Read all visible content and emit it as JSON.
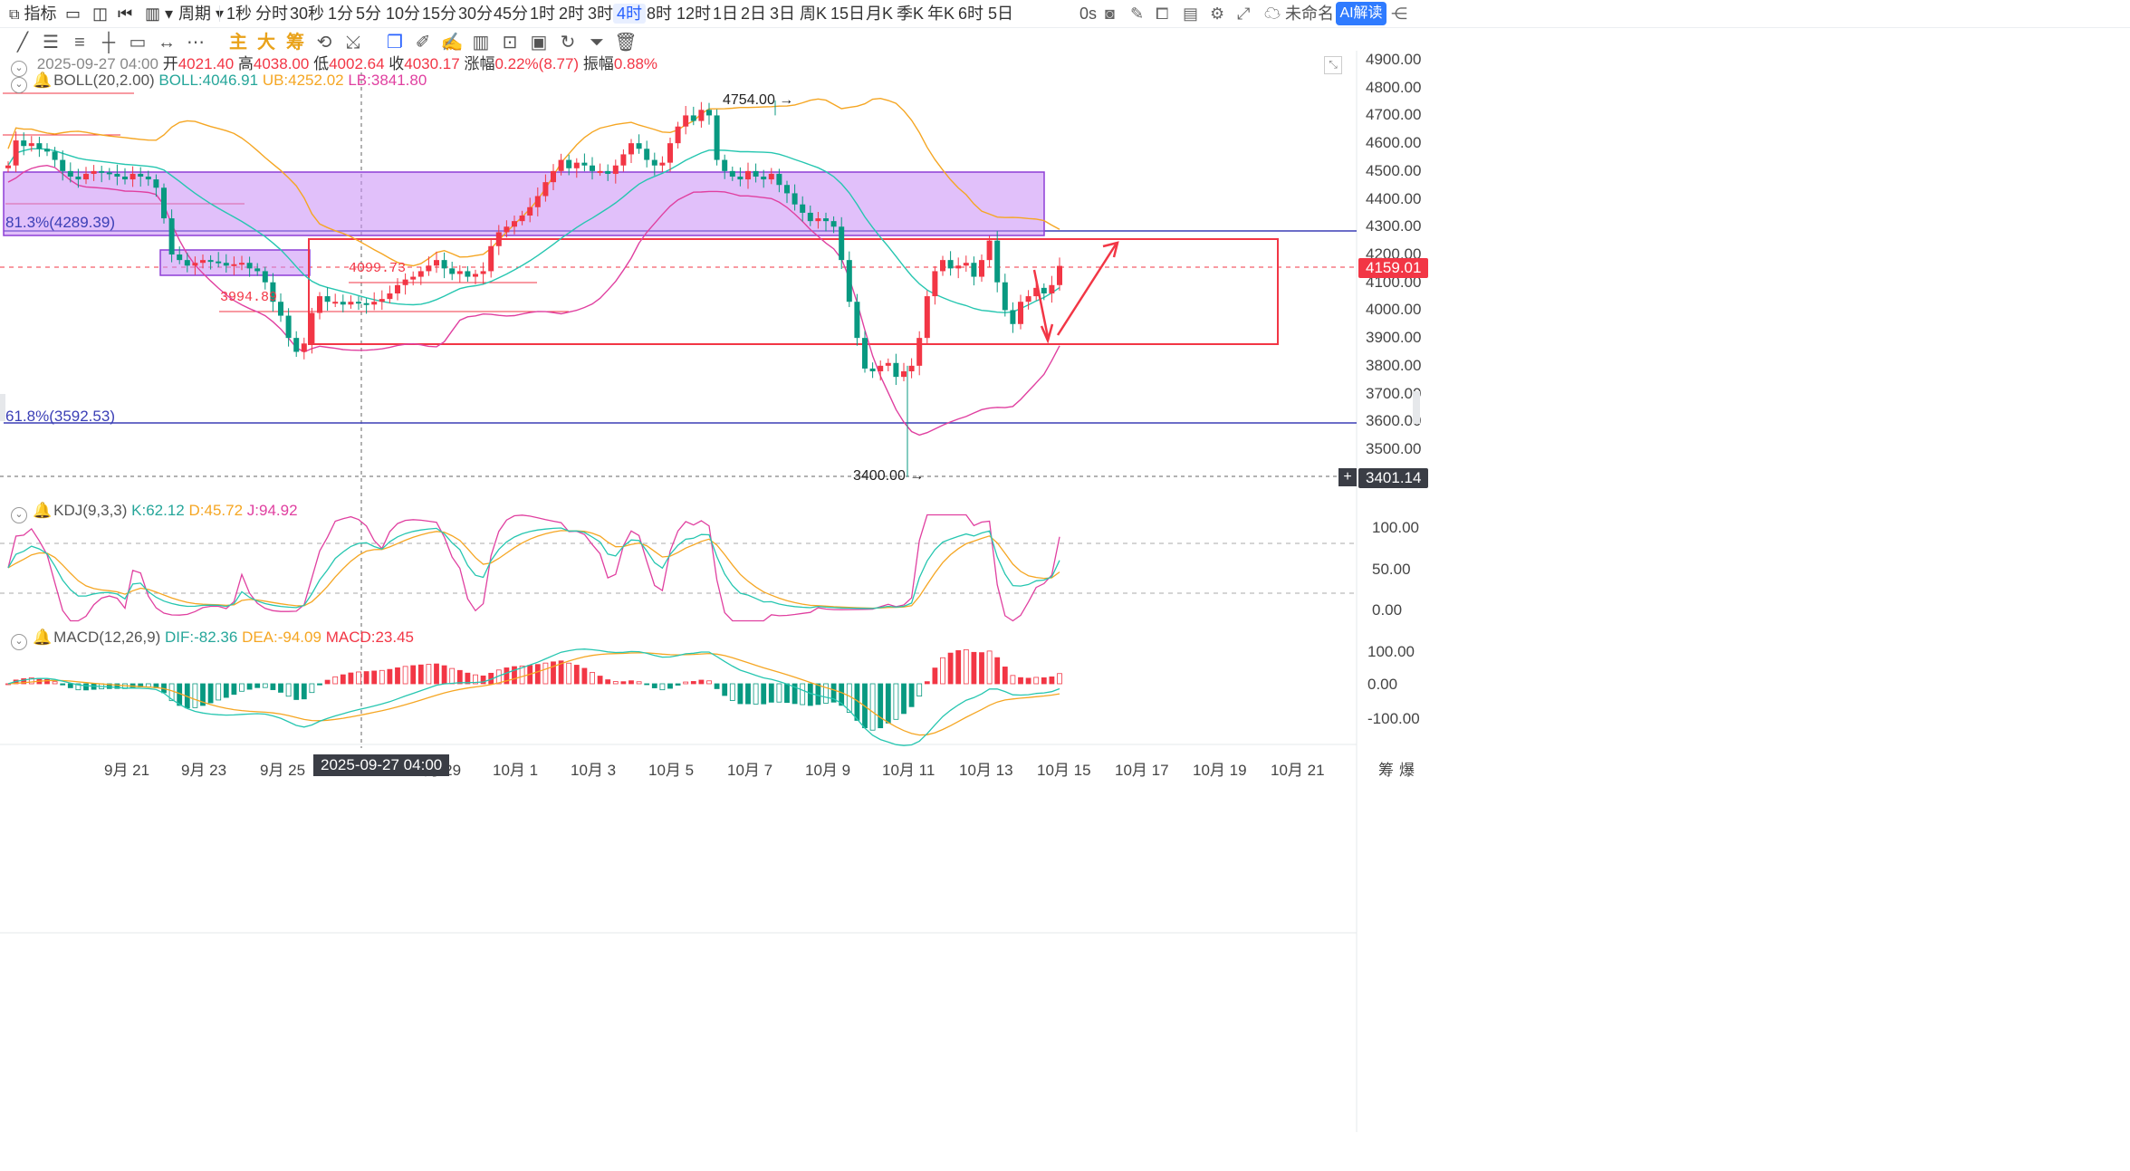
{
  "toolbar": {
    "indicators_label": "指标",
    "period_label": "周期",
    "intervals": [
      "1秒",
      "分时",
      "30秒",
      "1分",
      "5分",
      "10分",
      "15分",
      "30分",
      "45分",
      "1时",
      "2时",
      "3时",
      "4时",
      "8时",
      "12时",
      "1日",
      "2日",
      "3日",
      "周K",
      "15日",
      "月K",
      "季K",
      "年K",
      "6时",
      "5日"
    ],
    "active_interval": "4时",
    "countdown": "0s",
    "layout_name": "未命名",
    "ai_label": "AI解读"
  },
  "draw_tools": {
    "main_label": "主",
    "big_label": "大",
    "chip_label": "筹"
  },
  "ohlc_legend": {
    "datetime": "2025-09-27 04:00",
    "open_label": "开",
    "open": "4021.40",
    "high_label": "高",
    "high": "4038.00",
    "low_label": "低",
    "low": "4002.64",
    "close_label": "收",
    "close": "4030.17",
    "change_label": "涨幅",
    "change": "0.22%(8.77)",
    "amplitude_label": "振幅",
    "amplitude": "0.88%"
  },
  "boll_legend": {
    "name": "BOLL(20,2.00)",
    "boll": "BOLL:4046.91",
    "ub": "UB:4252.02",
    "lb": "LB:3841.80"
  },
  "kdj_legend": {
    "name": "KDJ(9,3,3)",
    "k": "K:62.12",
    "d": "D:45.72",
    "j": "J:94.92"
  },
  "macd_legend": {
    "name": "MACD(12,26,9)",
    "dif": "DIF:-82.36",
    "dea": "DEA:-94.09",
    "macd": "MACD:23.45"
  },
  "annotations": {
    "fib_813": "81.3%(4289.39)",
    "fib_618": "61.8%(3592.53)",
    "level_4099": "4099.73",
    "level_3994": "3994.89",
    "high_marker": "4754.00",
    "low_marker": "3400.00"
  },
  "price_axis": {
    "labels": [
      "4900.00",
      "4800.00",
      "4700.00",
      "4600.00",
      "4500.00",
      "4400.00",
      "4300.00",
      "4200.00",
      "4100.00",
      "4000.00",
      "3900.00",
      "3800.00",
      "3700.00",
      "3600.00",
      "3500.00"
    ],
    "current_price": "4159.01",
    "crosshair_price": "3401.14"
  },
  "kdj_axis": [
    "100.00",
    "50.00",
    "0.00"
  ],
  "macd_axis": [
    "100.00",
    "0.00",
    "-100.00"
  ],
  "time_axis": {
    "labels": [
      "9月 21",
      "9月 23",
      "9月 25",
      "9月 29",
      "10月 1",
      "10月 3",
      "10月 5",
      "10月 7",
      "10月 9",
      "10月 11",
      "10月 13",
      "10月 15",
      "10月 17",
      "10月 19",
      "10月 21"
    ],
    "crosshair_time": "2025-09-27 04:00",
    "corner_labels": [
      "筹",
      "爆"
    ]
  },
  "colors": {
    "up": "#f23645",
    "down": "#089981",
    "boll_mid": "#26c6b0",
    "boll_ub": "#f5a623",
    "boll_lb": "#e040a0",
    "zone": "#c98cf5",
    "accent": "#2962ff"
  },
  "chart_data": {
    "type": "candlestick",
    "interval": "4h",
    "price_range": [
      3400,
      4900
    ],
    "key_levels": {
      "fib_81_3": 4289.39,
      "fib_61_8": 3592.53,
      "support": 3994.89,
      "resistance": 4099.73,
      "high": 4754.0,
      "low": 3400.0,
      "last": 4159.01
    },
    "bollinger": {
      "period": 20,
      "mult": 2.0,
      "mid": 4046.91,
      "upper": 4252.02,
      "lower": 3841.8
    },
    "kdj": {
      "k": 62.12,
      "d": 45.72,
      "j": 94.92
    },
    "macd": {
      "dif": -82.36,
      "dea": -94.09,
      "hist": 23.45
    }
  }
}
